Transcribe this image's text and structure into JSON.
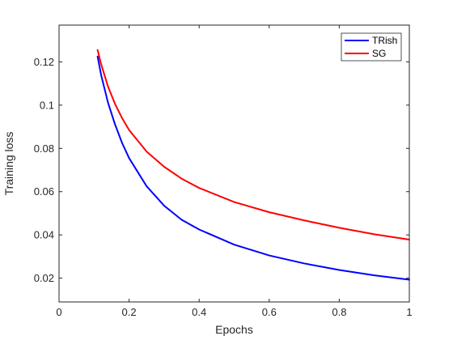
{
  "chart_data": {
    "type": "line",
    "title": "",
    "xlabel": "Epochs",
    "ylabel": "Training loss",
    "xlim": [
      0,
      1
    ],
    "ylim": [
      0.009,
      0.137
    ],
    "xticks": [
      0,
      0.2,
      0.4,
      0.6,
      0.8,
      1
    ],
    "xtick_labels": [
      "0",
      "0.2",
      "0.4",
      "0.6",
      "0.8",
      "1"
    ],
    "yticks": [
      0.02,
      0.04,
      0.06,
      0.08,
      0.1,
      0.12
    ],
    "ytick_labels": [
      "0.02",
      "0.04",
      "0.06",
      "0.08",
      "0.1",
      "0.12"
    ],
    "grid": false,
    "legend_position": "top-right",
    "series": [
      {
        "name": "TRish",
        "color": "#0000ff",
        "x": [
          0.11,
          0.12,
          0.14,
          0.16,
          0.18,
          0.2,
          0.25,
          0.3,
          0.35,
          0.4,
          0.5,
          0.6,
          0.7,
          0.8,
          0.9,
          1.0
        ],
        "y": [
          0.1225,
          0.114,
          0.101,
          0.091,
          0.0825,
          0.0755,
          0.0625,
          0.0535,
          0.047,
          0.0425,
          0.0355,
          0.0305,
          0.0268,
          0.0238,
          0.0213,
          0.0193
        ]
      },
      {
        "name": "SG",
        "color": "#ff0000",
        "x": [
          0.11,
          0.12,
          0.14,
          0.16,
          0.18,
          0.2,
          0.25,
          0.3,
          0.35,
          0.4,
          0.5,
          0.6,
          0.7,
          0.8,
          0.9,
          1.0
        ],
        "y": [
          0.1255,
          0.119,
          0.1085,
          0.1005,
          0.094,
          0.0885,
          0.0785,
          0.0715,
          0.066,
          0.0617,
          0.0552,
          0.0505,
          0.0467,
          0.0433,
          0.0403,
          0.0378
        ]
      }
    ]
  }
}
